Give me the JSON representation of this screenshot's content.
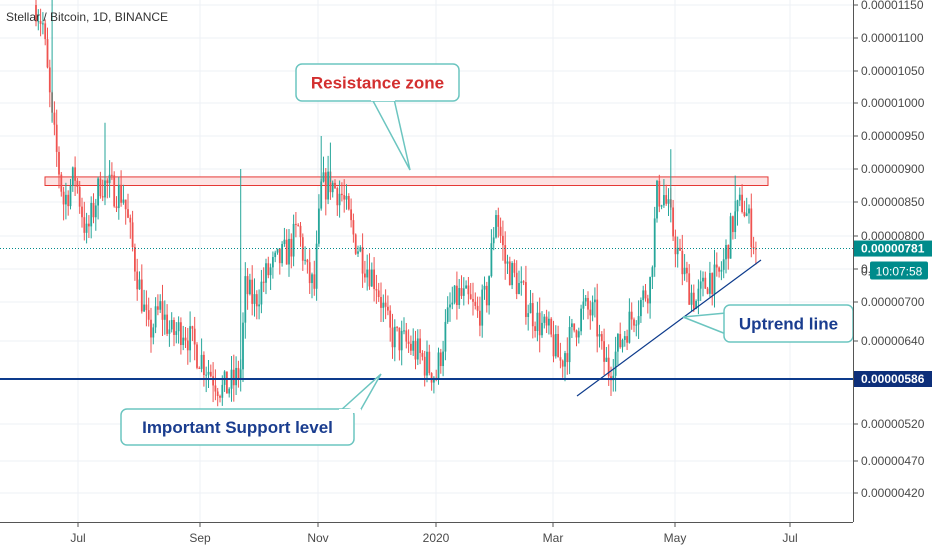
{
  "chart_data": {
    "type": "candlestick",
    "symbol": "Stellar / Bitcoin, 1D, BINANCE",
    "x_ticks": [
      "Jul",
      "Sep",
      "Nov",
      "2020",
      "Mar",
      "May",
      "Jul"
    ],
    "y_ticks": [
      "0.00001150",
      "0.00001100",
      "0.00001050",
      "0.00001000",
      "0.00000950",
      "0.00000900",
      "0.00000850",
      "0.00000800",
      "0.00000750",
      "0.00000700",
      "0.00000640",
      "0.00000586",
      "0.00000520",
      "0.00000470",
      "0.00000420"
    ],
    "ylim": [
      3.9e-06,
      1.17e-05
    ],
    "last_price": "0.00000781",
    "countdown": "10:07:58",
    "support_level": "0.00000586",
    "resistance_zone": [
      8.75e-06,
      8.88e-06
    ],
    "annotations": {
      "resistance": "Resistance zone",
      "support": "Important Support level",
      "uptrend": "Uptrend line"
    },
    "colors": {
      "up": "#26a69a",
      "down": "#ef5350",
      "support_line": "#0d3b8c",
      "resistance_fill": "#fde2e2",
      "resistance_border": "#e53935",
      "callout_border": "#6cc5c0",
      "resistance_text": "#d32f2f",
      "support_text": "#1a3d8f",
      "last_price_bg": "#008b8b",
      "support_label_bg": "#0d2f7a"
    },
    "price_path": [
      [
        0,
        1.15e-05
      ],
      [
        3,
        1.12e-05
      ],
      [
        7,
        9.7e-06
      ],
      [
        12,
        8.5e-06
      ],
      [
        17,
        8.9e-06
      ],
      [
        22,
        8e-06
      ],
      [
        28,
        8.8e-06
      ],
      [
        33,
        8.7e-06
      ],
      [
        38,
        8.6e-06
      ],
      [
        43,
        7.6e-06
      ],
      [
        49,
        6.5e-06
      ],
      [
        54,
        6.9e-06
      ],
      [
        59,
        6.5e-06
      ],
      [
        64,
        6.6e-06
      ],
      [
        69,
        6.3e-06
      ],
      [
        75,
        6e-06
      ],
      [
        81,
        5.7e-06
      ],
      [
        86,
        5.8e-06
      ],
      [
        89,
        6e-06
      ],
      [
        91,
        7.2e-06
      ],
      [
        95,
        7e-06
      ],
      [
        100,
        7.4e-06
      ],
      [
        105,
        7.6e-06
      ],
      [
        110,
        7.8e-06
      ],
      [
        114,
        8.1e-06
      ],
      [
        118,
        7.4e-06
      ],
      [
        121,
        7.2e-06
      ],
      [
        124,
        8.7e-06
      ],
      [
        128,
        8.8e-06
      ],
      [
        133,
        8.6e-06
      ],
      [
        138,
        8e-06
      ],
      [
        143,
        7.6e-06
      ],
      [
        148,
        7.3e-06
      ],
      [
        154,
        6.5e-06
      ],
      [
        159,
        6.4e-06
      ],
      [
        164,
        6.3e-06
      ],
      [
        169,
        6.1e-06
      ],
      [
        174,
        5.9e-06
      ],
      [
        177,
        6.4e-06
      ],
      [
        180,
        6.9e-06
      ],
      [
        184,
        7.1e-06
      ],
      [
        188,
        7e-06
      ],
      [
        192,
        6.8e-06
      ],
      [
        196,
        7.1e-06
      ],
      [
        200,
        8.4e-06
      ],
      [
        204,
        7.6e-06
      ],
      [
        209,
        7.3e-06
      ],
      [
        213,
        7e-06
      ],
      [
        218,
        6.7e-06
      ],
      [
        223,
        6.5e-06
      ],
      [
        228,
        6.1e-06
      ],
      [
        233,
        6.5e-06
      ],
      [
        238,
        6.9e-06
      ],
      [
        243,
        6.8e-06
      ],
      [
        246,
        6.2e-06
      ],
      [
        249,
        6e-06
      ],
      [
        253,
        6.3e-06
      ],
      [
        258,
        6.7e-06
      ],
      [
        263,
        7e-06
      ],
      [
        267,
        7.3e-06
      ],
      [
        270,
        8.6e-06
      ],
      [
        273,
        8.6e-06
      ],
      [
        276,
        8.2e-06
      ],
      [
        280,
        7.6e-06
      ],
      [
        284,
        7.2e-06
      ],
      [
        287,
        7e-06
      ],
      [
        290,
        7.2e-06
      ],
      [
        293,
        7.4e-06
      ],
      [
        296,
        7.3e-06
      ],
      [
        299,
        7.6e-06
      ],
      [
        303,
        8.2e-06
      ],
      [
        307,
        8.5e-06
      ],
      [
        310,
        8.2e-06
      ],
      [
        313,
        7.8e-06
      ]
    ]
  }
}
